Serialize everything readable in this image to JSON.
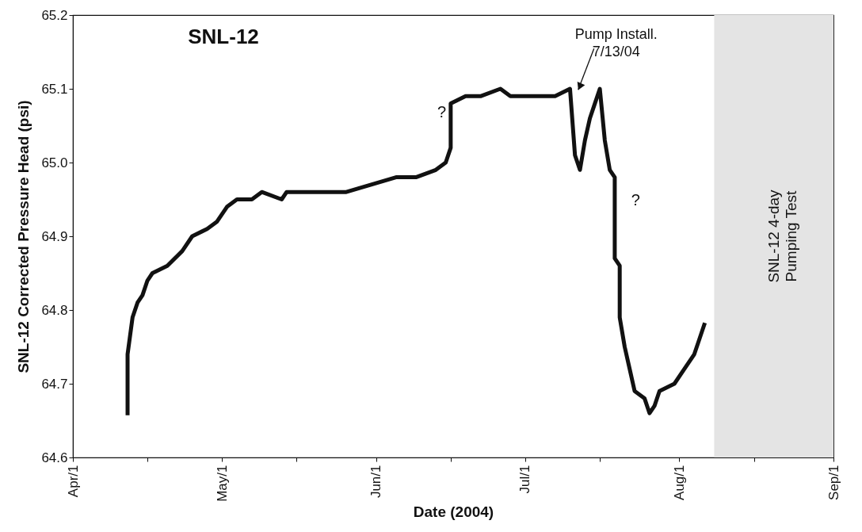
{
  "chart_data": {
    "type": "line",
    "title": "SNL-12",
    "xlabel": "Date (2004)",
    "ylabel": "SNL-12 Corrected Pressure Head (psi)",
    "x": [
      "2004-04-12",
      "2004-04-12",
      "2004-04-13",
      "2004-04-14",
      "2004-04-15",
      "2004-04-16",
      "2004-04-17",
      "2004-04-20",
      "2004-04-23",
      "2004-04-25",
      "2004-04-28",
      "2004-04-30",
      "2004-05-02",
      "2004-05-04",
      "2004-05-07",
      "2004-05-09",
      "2004-05-13",
      "2004-05-14",
      "2004-05-20",
      "2004-05-26",
      "2004-05-31",
      "2004-06-05",
      "2004-06-09",
      "2004-06-13",
      "2004-06-15",
      "2004-06-16",
      "2004-06-16",
      "2004-06-19",
      "2004-06-22",
      "2004-06-26",
      "2004-06-28",
      "2004-07-07",
      "2004-07-10",
      "2004-07-11",
      "2004-07-12",
      "2004-07-13",
      "2004-07-14",
      "2004-07-15",
      "2004-07-16",
      "2004-07-17",
      "2004-07-18",
      "2004-07-19",
      "2004-07-19",
      "2004-07-20",
      "2004-07-20",
      "2004-07-21",
      "2004-07-22",
      "2004-07-23",
      "2004-07-25",
      "2004-07-26",
      "2004-07-27",
      "2004-07-28",
      "2004-07-31",
      "2004-08-02",
      "2004-08-04",
      "2004-08-05",
      "2004-08-06"
    ],
    "series": [
      {
        "color": "#111111",
        "values": [
          64.66,
          64.74,
          64.79,
          64.81,
          64.82,
          64.84,
          64.85,
          64.86,
          64.88,
          64.9,
          64.91,
          64.92,
          64.94,
          64.95,
          64.95,
          64.96,
          64.95,
          64.96,
          64.96,
          64.96,
          64.97,
          64.98,
          64.98,
          64.99,
          65.0,
          65.02,
          65.08,
          65.09,
          65.09,
          65.1,
          65.09,
          65.09,
          65.1,
          65.01,
          64.99,
          65.03,
          65.06,
          65.08,
          65.1,
          65.03,
          64.99,
          64.98,
          64.87,
          64.86,
          64.79,
          64.75,
          64.72,
          64.69,
          64.68,
          64.66,
          64.67,
          64.69,
          64.7,
          64.72,
          64.74,
          64.76,
          64.78
        ]
      }
    ],
    "xlim": [
      "2004-04-01",
      "2004-09-01"
    ],
    "xticks": [
      {
        "value": "2004-04-01",
        "label": "Apr/1"
      },
      {
        "value": "2004-04-16",
        "label": null
      },
      {
        "value": "2004-05-01",
        "label": "May/1"
      },
      {
        "value": "2004-05-16",
        "label": null
      },
      {
        "value": "2004-06-01",
        "label": "Jun/1"
      },
      {
        "value": "2004-06-16",
        "label": null
      },
      {
        "value": "2004-07-01",
        "label": "Jul/1"
      },
      {
        "value": "2004-07-16",
        "label": null
      },
      {
        "value": "2004-08-01",
        "label": "Aug/1"
      },
      {
        "value": "2004-08-16",
        "label": null
      },
      {
        "value": "2004-09-01",
        "label": "Sep/1"
      }
    ],
    "ylim": [
      64.6,
      65.2
    ],
    "yticks": [
      64.6,
      64.7,
      64.8,
      64.9,
      {
        "value": 65.0,
        "label": "65.0"
      },
      65.1,
      65.2
    ],
    "bands": [
      {
        "axis": "x",
        "from": "2004-08-08",
        "to": "2004-09-01",
        "label": "SNL-12 4-day\nPumping Test",
        "color": "#e4e4e4"
      }
    ],
    "annotations": [
      {
        "text": "Pump Install.\n7/13/04",
        "x": "2004-07-11",
        "y": 65.09
      },
      "?",
      "?"
    ],
    "grid": false
  }
}
